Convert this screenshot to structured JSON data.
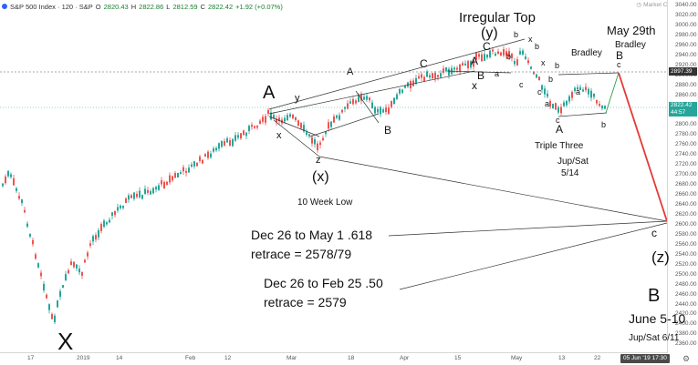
{
  "header": {
    "symbol": "S&P 500 Index · 120 · S&P",
    "open_label": "O",
    "open": "2820.43",
    "high_label": "H",
    "high": "2822.86",
    "low_label": "L",
    "low": "2812.59",
    "close_label": "C",
    "close": "2822.42",
    "change": "+1.92 (+0.07%)",
    "marker_text": "Market Closed"
  },
  "price_axis": {
    "labels": [
      "3040.00",
      "3020.00",
      "3000.00",
      "2980.00",
      "2960.00",
      "2940.00",
      "2920.00",
      "2900.00",
      "2880.00",
      "2860.00",
      "2840.00",
      "2820.00",
      "2800.00",
      "2780.00",
      "2760.00",
      "2740.00",
      "2720.00",
      "2700.00",
      "2680.00",
      "2660.00",
      "2640.00",
      "2620.00",
      "2600.00",
      "2580.00",
      "2560.00",
      "2540.00",
      "2520.00",
      "2500.00",
      "2480.00",
      "2460.00",
      "2440.00",
      "2420.00",
      "2400.00",
      "2380.00",
      "2360.00"
    ],
    "tag_top": "2897.39",
    "tag_top_color": "#333333",
    "tag_last": "2822.42",
    "tag_last_sub": "44:57",
    "tag_last_color": "#26a69a"
  },
  "time_axis": {
    "labels": [
      "17",
      "2019",
      "14",
      "Feb",
      "12",
      "Mar",
      "18",
      "Apr",
      "15",
      "May",
      "13",
      "22"
    ],
    "date_badge": "05 Jun '19   17:30",
    "settings_icon": "gear-icon"
  },
  "annotations": {
    "X": "X",
    "A_big": "A",
    "x1": "x",
    "y1": "y",
    "z1": "z",
    "x_paren": "(x)",
    "ten_week": "10 Week Low",
    "A_line": "A",
    "B1": "B",
    "C1": "C",
    "A2": "A",
    "B2": "B",
    "x2": "x",
    "a1": "a",
    "b1": "b",
    "c1": "c",
    "b2": "b",
    "a2": "a",
    "x3": "x",
    "b3": "b",
    "c_paren": "C",
    "y_paren": "(y)",
    "irregular": "Irregular Top",
    "x4": "x",
    "c2": "c",
    "b4": "b",
    "a3": "a",
    "c3": "c",
    "A3": "A",
    "b5": "b",
    "a4": "a",
    "b6": "b",
    "bradley1": "Bradley",
    "may29": "May 29th",
    "bradley2": "Bradley",
    "B3": "B",
    "c4": "c",
    "triple": "Triple Three",
    "jup1": "Jup/Sat",
    "jup1_date": "5/14",
    "retr1_a": "Dec 26 to May 1  .618",
    "retr1_b": "retrace = 2578/79",
    "retr2_a": "Dec 26 to Feb 25  .50",
    "retr2_b": "retrace = 2579",
    "c_small": "c",
    "z_paren": "(z)",
    "B_big": "B",
    "june": "June 5-10",
    "jup2": "Jup/Sat 6/11"
  }
}
